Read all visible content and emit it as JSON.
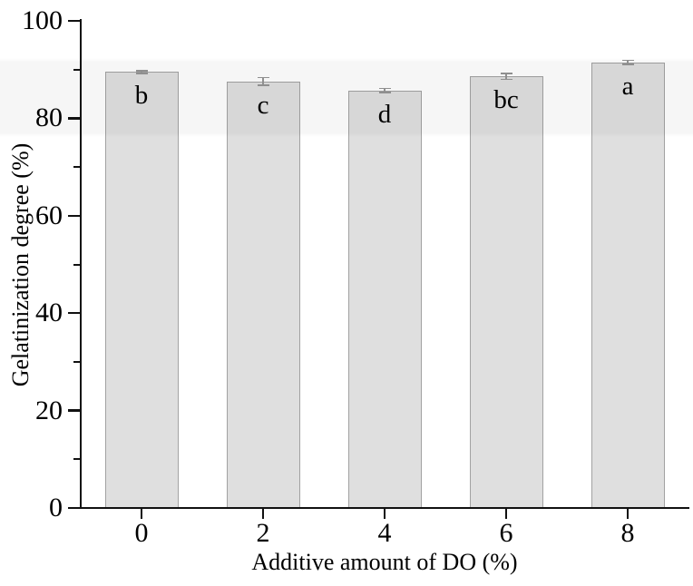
{
  "figure": {
    "background": "#ffffff",
    "band_tint": "rgba(0,0,0,0.034)"
  },
  "chart_data": {
    "type": "bar",
    "title": "",
    "xlabel": "Additive amount of DO (%)",
    "ylabel": "Gelatinization degree (%)",
    "categories": [
      "0",
      "2",
      "4",
      "6",
      "8"
    ],
    "values": [
      89.5,
      87.6,
      85.7,
      88.6,
      91.5
    ],
    "errors": [
      0.3,
      0.8,
      0.4,
      0.6,
      0.4
    ],
    "bar_labels": [
      "b",
      "c",
      "d",
      "bc",
      "a"
    ],
    "ylim": [
      0,
      100
    ],
    "yticks_major": [
      0,
      20,
      40,
      60,
      80,
      100
    ],
    "yticks_minor": [
      10,
      30,
      50,
      70,
      90
    ],
    "grid": false,
    "legend": null,
    "colors": {
      "bar_fill": "#dfdfdf",
      "bar_border": "#a2a2a2",
      "error_bar": "#8f8f8f",
      "axis": "#111111",
      "text": "#000000"
    }
  }
}
